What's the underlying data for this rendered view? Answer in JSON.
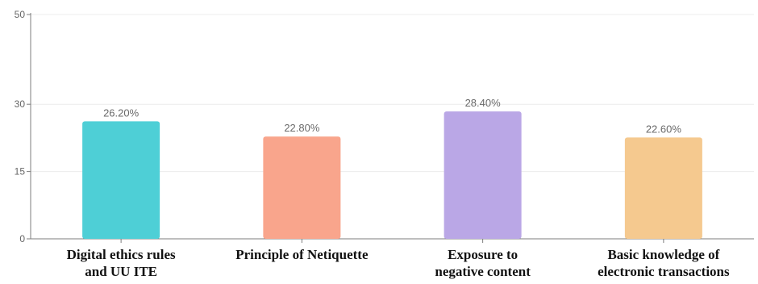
{
  "chart_data": {
    "type": "bar",
    "categories": [
      [
        "Digital ethics rules",
        "and UU ITE"
      ],
      [
        "Principle of Netiquette"
      ],
      [
        "Exposure to",
        "negative content"
      ],
      [
        "Basic knowledge of",
        "electronic transactions"
      ]
    ],
    "values": [
      26.2,
      22.8,
      28.4,
      22.6
    ],
    "data_labels": [
      "26.20%",
      "22.80%",
      "28.40%",
      "22.60%"
    ],
    "colors": [
      "#4ecfd6",
      "#f9a58c",
      "#baa7e6",
      "#f5c98f"
    ],
    "yticks": [
      0,
      15,
      30,
      50
    ],
    "ylim": [
      0,
      50
    ],
    "grid": true,
    "title": "",
    "xlabel": "",
    "ylabel": ""
  }
}
